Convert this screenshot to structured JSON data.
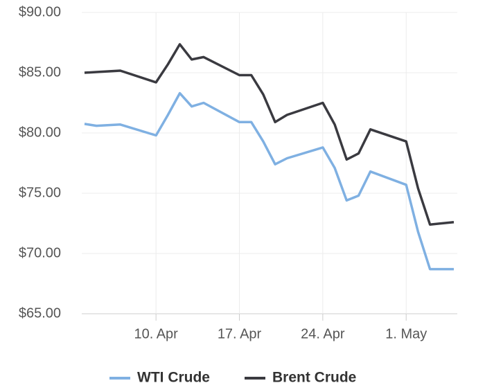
{
  "chart_data": {
    "type": "line",
    "x": [
      "4. Apr",
      "5. Apr",
      "7. Apr",
      "10. Apr",
      "11. Apr",
      "12. Apr",
      "13. Apr",
      "14. Apr",
      "17. Apr",
      "18. Apr",
      "19. Apr",
      "20. Apr",
      "21. Apr",
      "24. Apr",
      "25. Apr",
      "26. Apr",
      "27. Apr",
      "28. Apr",
      "1. May",
      "2. May",
      "3. May",
      "5. May"
    ],
    "series": [
      {
        "name": "WTI Crude",
        "color": "#7fb0e2",
        "values": [
          80.75,
          80.6,
          80.7,
          79.8,
          81.5,
          83.3,
          82.2,
          82.5,
          80.9,
          80.9,
          79.3,
          77.4,
          77.9,
          78.8,
          77.1,
          74.4,
          74.8,
          76.8,
          75.7,
          71.8,
          68.7,
          68.7
        ]
      },
      {
        "name": "Brent Crude",
        "color": "#3a3a40",
        "values": [
          85.0,
          85.06,
          85.17,
          84.2,
          85.7,
          87.36,
          86.1,
          86.3,
          84.8,
          84.8,
          83.2,
          80.9,
          81.5,
          82.5,
          80.7,
          77.8,
          78.3,
          80.3,
          79.3,
          75.4,
          72.4,
          72.6
        ]
      }
    ],
    "xlim": [
      "4. Apr",
      "5. May"
    ],
    "xticks": [
      "10. Apr",
      "17. Apr",
      "24. Apr",
      "1. May"
    ],
    "ylim": [
      65,
      90
    ],
    "yticks": [
      {
        "value": 65,
        "label": "$65.00"
      },
      {
        "value": 70,
        "label": "$70.00"
      },
      {
        "value": 75,
        "label": "$75.00"
      },
      {
        "value": 80,
        "label": "$80.00"
      },
      {
        "value": 85,
        "label": "$85.00"
      },
      {
        "value": 90,
        "label": "$90.00"
      }
    ],
    "grid": true,
    "legend": "bottom"
  }
}
